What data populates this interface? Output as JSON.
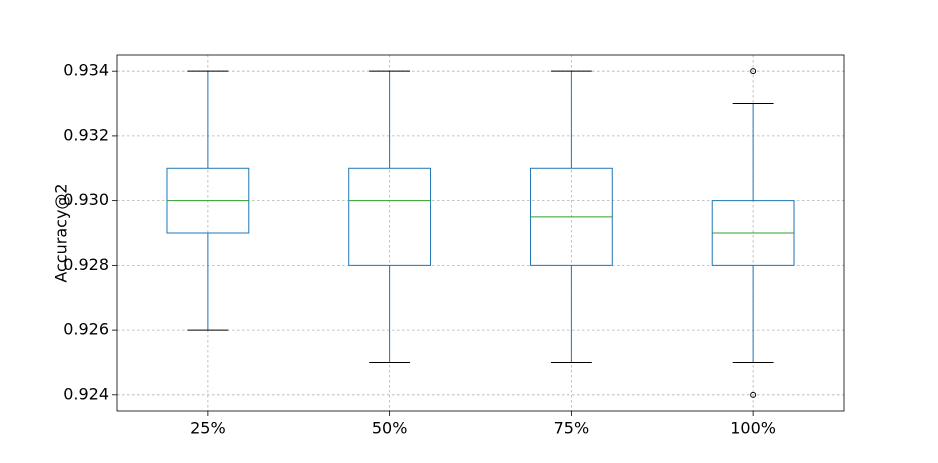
{
  "chart_data": {
    "type": "box",
    "title": "",
    "xlabel": "",
    "ylabel": "Accuracy@2",
    "ylim": [
      0.9235,
      0.9345
    ],
    "yticks": [
      "0.924",
      "0.926",
      "0.928",
      "0.930",
      "0.932",
      "0.934"
    ],
    "ytick_values": [
      0.924,
      0.926,
      0.928,
      0.93,
      0.932,
      0.934
    ],
    "grid": true,
    "categories": [
      "25%",
      "50%",
      "75%",
      "100%"
    ],
    "boxes": [
      {
        "category": "25%",
        "whisker_low": 0.926,
        "q1": 0.929,
        "median": 0.93,
        "q3": 0.931,
        "whisker_high": 0.934,
        "outliers": []
      },
      {
        "category": "50%",
        "whisker_low": 0.925,
        "q1": 0.928,
        "median": 0.93,
        "q3": 0.931,
        "whisker_high": 0.934,
        "outliers": []
      },
      {
        "category": "75%",
        "whisker_low": 0.925,
        "q1": 0.928,
        "median": 0.9295,
        "q3": 0.931,
        "whisker_high": 0.934,
        "outliers": []
      },
      {
        "category": "100%",
        "whisker_low": 0.925,
        "q1": 0.928,
        "median": 0.929,
        "q3": 0.93,
        "whisker_high": 0.933,
        "outliers": [
          0.934,
          0.924
        ]
      }
    ],
    "colors": {
      "box": "#1f77b4",
      "median": "#2ca02c",
      "whisker": "#1f77b4",
      "cap": "#000000",
      "grid": "#b0b0b0",
      "axes": "#000000"
    }
  }
}
